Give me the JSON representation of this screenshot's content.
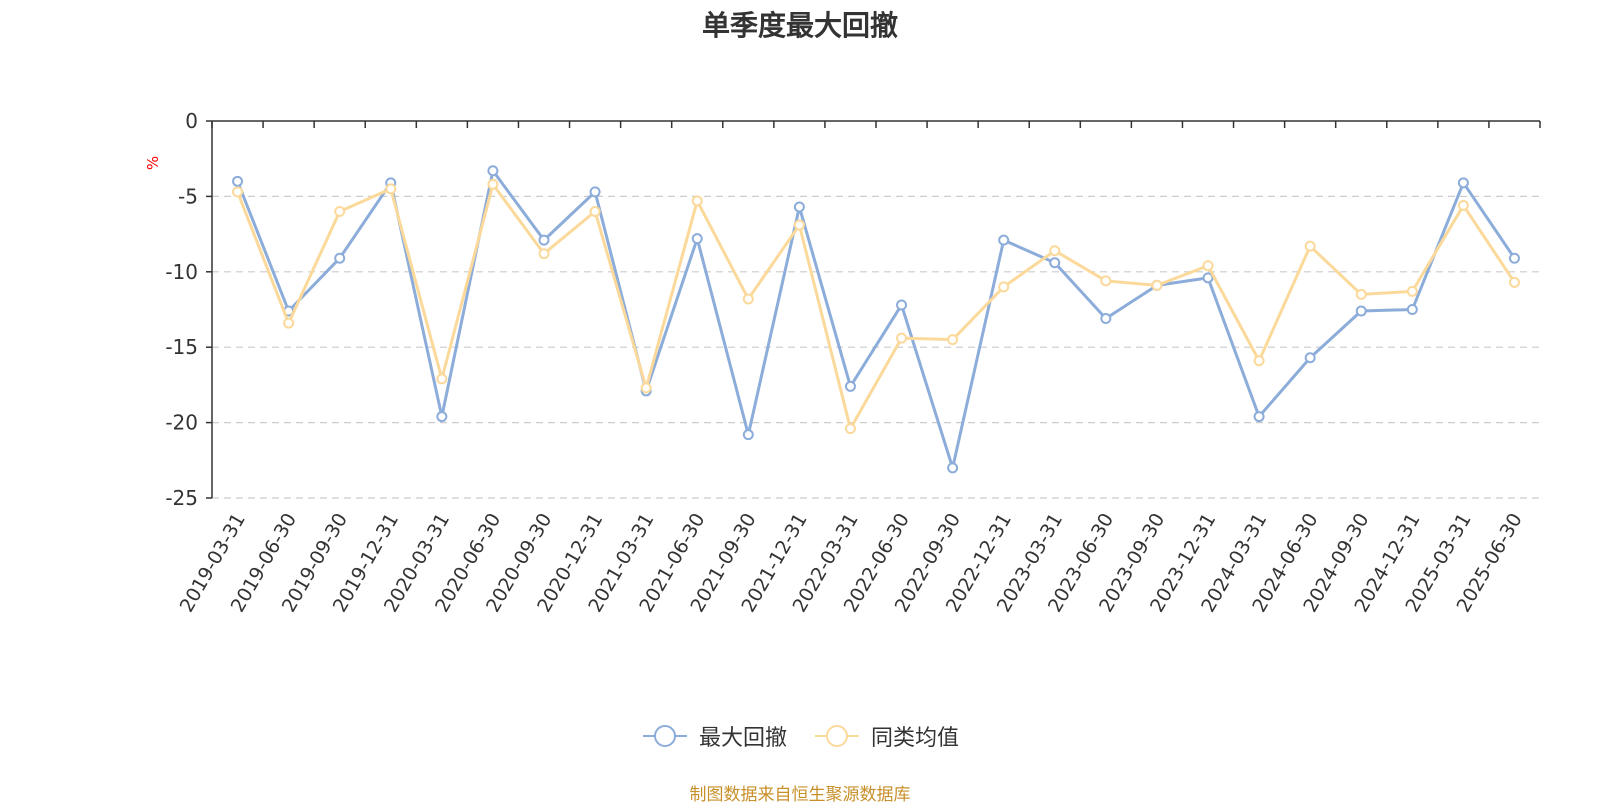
{
  "chart_data": {
    "type": "line",
    "title": "单季度最大回撤",
    "ylabel": "%",
    "ylim": [
      -25,
      0
    ],
    "yticks": [
      0,
      -5,
      -10,
      -15,
      -20,
      -25
    ],
    "grid": true,
    "legend_position": "bottom",
    "categories": [
      "2019-03-31",
      "2019-06-30",
      "2019-09-30",
      "2019-12-31",
      "2020-03-31",
      "2020-06-30",
      "2020-09-30",
      "2020-12-31",
      "2021-03-31",
      "2021-06-30",
      "2021-09-30",
      "2021-12-31",
      "2022-03-31",
      "2022-06-30",
      "2022-09-30",
      "2022-12-31",
      "2023-03-31",
      "2023-06-30",
      "2023-09-30",
      "2023-12-31",
      "2024-03-31",
      "2024-06-30",
      "2024-09-30",
      "2024-12-31",
      "2025-03-31",
      "2025-06-30"
    ],
    "series": [
      {
        "name": "最大回撤",
        "color": "#8cacd9",
        "values": [
          -4.0,
          -12.6,
          -9.1,
          -4.1,
          -19.6,
          -3.3,
          -7.9,
          -4.7,
          -17.9,
          -7.8,
          -20.8,
          -5.7,
          -17.6,
          -12.2,
          -23.0,
          -7.9,
          -9.4,
          -13.1,
          -10.9,
          -10.4,
          -19.6,
          -15.7,
          -12.6,
          -12.5,
          -4.1,
          -9.1
        ]
      },
      {
        "name": "同类均值",
        "color": "#fbd99a",
        "values": [
          -4.7,
          -13.4,
          -6.0,
          -4.5,
          -17.1,
          -4.2,
          -8.8,
          -6.0,
          -17.7,
          -5.3,
          -11.8,
          -6.9,
          -20.4,
          -14.4,
          -14.5,
          -11.0,
          -8.6,
          -10.6,
          -10.9,
          -9.6,
          -15.9,
          -8.3,
          -11.5,
          -11.3,
          -5.6,
          -10.7
        ]
      }
    ]
  },
  "footer": "制图数据来自恒生聚源数据库"
}
